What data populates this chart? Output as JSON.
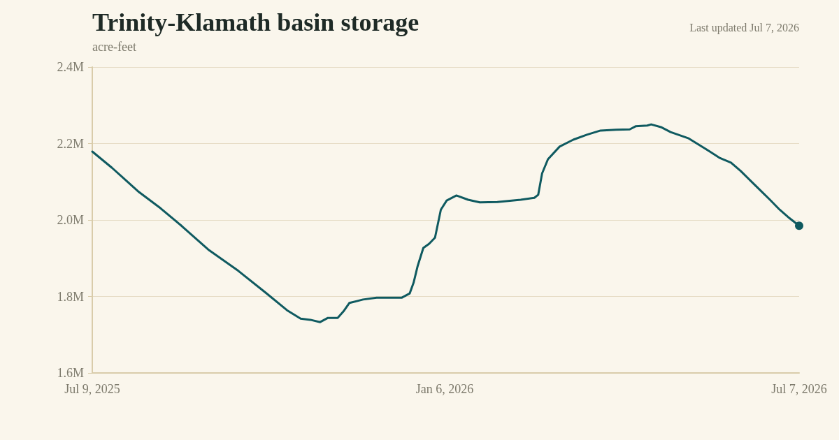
{
  "chart_data": {
    "type": "line",
    "title": "Trinity-Klamath basin storage",
    "ylabel": "acre-feet",
    "annotations": [
      "Last updated Jul 7, 2026"
    ],
    "x": [
      "2025-07-09",
      "2025-07-19",
      "2025-08-02",
      "2025-08-13",
      "2025-08-24",
      "2025-09-07",
      "2025-09-22",
      "2025-10-06",
      "2025-10-17",
      "2025-10-24",
      "2025-10-29",
      "2025-11-03",
      "2025-11-07",
      "2025-11-12",
      "2025-11-15",
      "2025-11-18",
      "2025-11-25",
      "2025-12-02",
      "2025-12-10",
      "2025-12-15",
      "2025-12-19",
      "2025-12-21",
      "2025-12-23",
      "2025-12-26",
      "2025-12-29",
      "2026-01-01",
      "2026-01-04",
      "2026-01-07",
      "2026-01-12",
      "2026-01-18",
      "2026-01-24",
      "2026-02-02",
      "2026-02-14",
      "2026-02-21",
      "2026-02-23",
      "2026-02-25",
      "2026-02-28",
      "2026-03-06",
      "2026-03-13",
      "2026-03-20",
      "2026-03-27",
      "2026-04-04",
      "2026-04-11",
      "2026-04-14",
      "2026-04-20",
      "2026-04-22",
      "2026-04-27",
      "2026-05-02",
      "2026-05-11",
      "2026-05-20",
      "2026-05-27",
      "2026-06-02",
      "2026-06-07",
      "2026-06-14",
      "2026-06-22",
      "2026-06-27",
      "2026-07-02",
      "2026-07-07"
    ],
    "series": [
      {
        "color": "#0f5a60",
        "values": [
          2179000,
          2137000,
          2073000,
          2031000,
          1984000,
          1921000,
          1867000,
          1810000,
          1764000,
          1742000,
          1739000,
          1733000,
          1744000,
          1744000,
          1761000,
          1783000,
          1792000,
          1797000,
          1797000,
          1797000,
          1808000,
          1836000,
          1878000,
          1927000,
          1938000,
          1954000,
          2027000,
          2051000,
          2064000,
          2053000,
          2046000,
          2047000,
          2053000,
          2058000,
          2066000,
          2122000,
          2159000,
          2192000,
          2210000,
          2223000,
          2234000,
          2236000,
          2237000,
          2245000,
          2247000,
          2250000,
          2243000,
          2230000,
          2214000,
          2186000,
          2163000,
          2150000,
          2128000,
          2093000,
          2053000,
          2027000,
          2005000,
          1985000
        ]
      },
      {
        "type": "scatter",
        "marker": "circle",
        "color": "#0f5a60",
        "x": [
          "2026-07-07"
        ],
        "values": [
          1985000
        ]
      }
    ],
    "xlim": [
      "2025-07-09",
      "2026-07-07"
    ],
    "xticks": [
      {
        "value": "2025-07-09",
        "label": "Jul 9, 2025"
      },
      {
        "value": "2026-01-06",
        "label": "Jan 6, 2026"
      },
      {
        "value": "2026-07-07",
        "label": "Jul 7, 2026"
      }
    ],
    "ylim": [
      1600000,
      2400000
    ],
    "yticks": [
      {
        "value": 1600000,
        "label": "1.6M"
      },
      {
        "value": 1800000,
        "label": "1.8M"
      },
      {
        "value": 2000000,
        "label": "2.0M"
      },
      {
        "value": 2200000,
        "label": "2.2M"
      },
      {
        "value": 2400000,
        "label": "2.4M"
      }
    ],
    "grid": "y",
    "marker": "none",
    "line_style": "solid"
  }
}
